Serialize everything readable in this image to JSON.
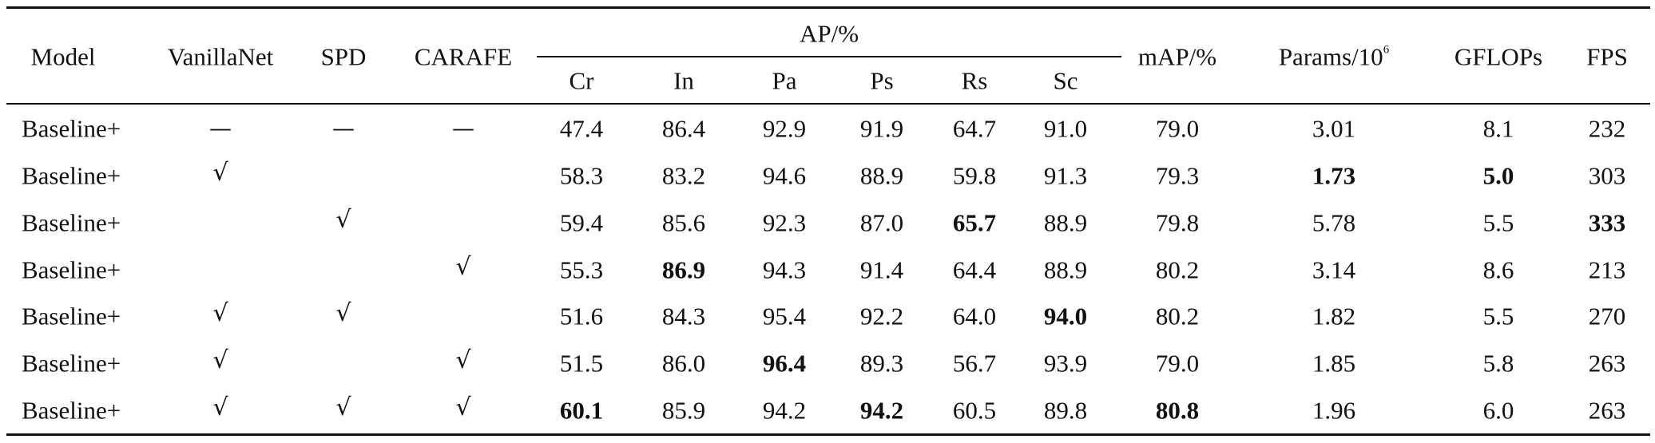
{
  "table": {
    "header": {
      "model": "Model",
      "vanillanet": "VanillaNet",
      "spd": "SPD",
      "carafe": "CARAFE",
      "ap_group": "AP/%",
      "ap_cols": [
        "Cr",
        "In",
        "Pa",
        "Ps",
        "Rs",
        "Sc"
      ],
      "map": "mAP/%",
      "params": "Params/10",
      "params_exp": "6",
      "gflops": "GFLOPs",
      "fps": "FPS"
    },
    "rows": [
      {
        "model": "Baseline+",
        "vanillanet": "—",
        "spd": "—",
        "carafe": "—",
        "ap": [
          "47.4",
          "86.4",
          "92.9",
          "91.9",
          "64.7",
          "91.0"
        ],
        "map": "79.0",
        "params": "3.01",
        "gflops": "8.1",
        "fps": "232"
      },
      {
        "model": "Baseline+",
        "vanillanet": "√",
        "spd": "",
        "carafe": "",
        "ap": [
          "58.3",
          "83.2",
          "94.6",
          "88.9",
          "59.8",
          "91.3"
        ],
        "map": "79.3",
        "params": "1.73",
        "gflops": "5.0",
        "fps": "303"
      },
      {
        "model": "Baseline+",
        "vanillanet": "",
        "spd": "√",
        "carafe": "",
        "ap": [
          "59.4",
          "85.6",
          "92.3",
          "87.0",
          "65.7",
          "88.9"
        ],
        "map": "79.8",
        "params": "5.78",
        "gflops": "5.5",
        "fps": "333"
      },
      {
        "model": "Baseline+",
        "vanillanet": "",
        "spd": "",
        "carafe": "√",
        "ap": [
          "55.3",
          "86.9",
          "94.3",
          "91.4",
          "64.4",
          "88.9"
        ],
        "map": "80.2",
        "params": "3.14",
        "gflops": "8.6",
        "fps": "213"
      },
      {
        "model": "Baseline+",
        "vanillanet": "√",
        "spd": "√",
        "carafe": "",
        "ap": [
          "51.6",
          "84.3",
          "95.4",
          "92.2",
          "64.0",
          "94.0"
        ],
        "map": "80.2",
        "params": "1.82",
        "gflops": "5.5",
        "fps": "270"
      },
      {
        "model": "Baseline+",
        "vanillanet": "√",
        "spd": "",
        "carafe": "√",
        "ap": [
          "51.5",
          "86.0",
          "96.4",
          "89.3",
          "56.7",
          "93.9"
        ],
        "map": "79.0",
        "params": "1.85",
        "gflops": "5.8",
        "fps": "263"
      },
      {
        "model": "Baseline+",
        "vanillanet": "√",
        "spd": "√",
        "carafe": "√",
        "ap": [
          "60.1",
          "85.9",
          "94.2",
          "94.2",
          "60.5",
          "89.8"
        ],
        "map": "80.8",
        "params": "1.96",
        "gflops": "6.0",
        "fps": "263"
      }
    ]
  }
}
